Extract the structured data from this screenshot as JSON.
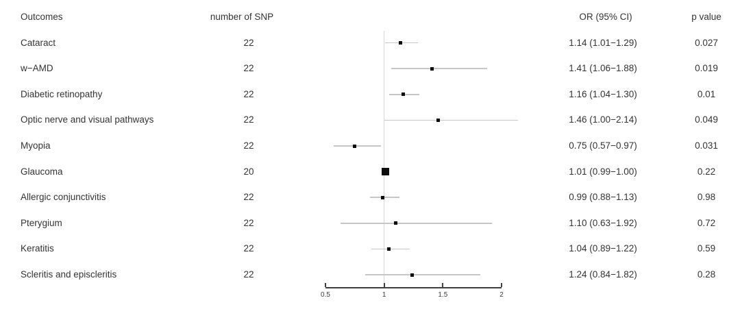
{
  "columns": {
    "outcomes": "Outcomes",
    "snp": "number of SNP",
    "or_ci": "OR (95% CI)",
    "p": "p value"
  },
  "chart_data": {
    "type": "forest",
    "title": "",
    "axis": {
      "scale": "linear",
      "min": 0.5,
      "max": 2.0,
      "ticks": [
        0.5,
        1,
        1.5,
        2
      ],
      "tick_labels": [
        "0.5",
        "1",
        "1.5",
        "2"
      ],
      "reference_line": 1.0,
      "grid": false
    },
    "rows": [
      {
        "outcome": "Cataract",
        "snp": "22",
        "or": 1.14,
        "ci_low": 1.01,
        "ci_high": 1.29,
        "or_ci": "1.14 (1.01−1.29)",
        "p": "0.027",
        "marker": "small"
      },
      {
        "outcome": "w−AMD",
        "snp": "22",
        "or": 1.41,
        "ci_low": 1.06,
        "ci_high": 1.88,
        "or_ci": "1.41 (1.06−1.88)",
        "p": "0.019",
        "marker": "small"
      },
      {
        "outcome": "Diabetic retinopathy",
        "snp": "22",
        "or": 1.16,
        "ci_low": 1.04,
        "ci_high": 1.3,
        "or_ci": "1.16 (1.04−1.30)",
        "p": "0.01",
        "marker": "small"
      },
      {
        "outcome": "Optic nerve and visual pathways",
        "snp": "22",
        "or": 1.46,
        "ci_low": 1.0,
        "ci_high": 2.14,
        "or_ci": "1.46 (1.00−2.14)",
        "p": "0.049",
        "marker": "small"
      },
      {
        "outcome": "Myopia",
        "snp": "22",
        "or": 0.75,
        "ci_low": 0.57,
        "ci_high": 0.97,
        "or_ci": "0.75 (0.57−0.97)",
        "p": "0.031",
        "marker": "small"
      },
      {
        "outcome": "Glaucoma",
        "snp": "20",
        "or": 1.01,
        "ci_low": 0.99,
        "ci_high": 1.0,
        "or_ci": "1.01 (0.99−1.00)",
        "p": "0.22",
        "marker": "large"
      },
      {
        "outcome": "Allergic conjunctivitis",
        "snp": "22",
        "or": 0.99,
        "ci_low": 0.88,
        "ci_high": 1.13,
        "or_ci": "0.99 (0.88−1.13)",
        "p": "0.98",
        "marker": "small"
      },
      {
        "outcome": "Pterygium",
        "snp": "22",
        "or": 1.1,
        "ci_low": 0.63,
        "ci_high": 1.92,
        "or_ci": "1.10 (0.63−1.92)",
        "p": "0.72",
        "marker": "small"
      },
      {
        "outcome": "Keratitis",
        "snp": "22",
        "or": 1.04,
        "ci_low": 0.89,
        "ci_high": 1.22,
        "or_ci": "1.04 (0.89−1.22)",
        "p": "0.59",
        "marker": "small"
      },
      {
        "outcome": "Scleritis and episcleritis",
        "snp": "22",
        "or": 1.24,
        "ci_low": 0.84,
        "ci_high": 1.82,
        "or_ci": "1.24 (0.84−1.82)",
        "p": "0.28",
        "marker": "small"
      }
    ]
  },
  "colors": {
    "text": "#333333",
    "marker": "#0d0d0d",
    "ci_line": "#c6c6c6",
    "reference_line": "#d6d6d6",
    "axis_line": "#3f3f3f",
    "background": "#ffffff"
  }
}
